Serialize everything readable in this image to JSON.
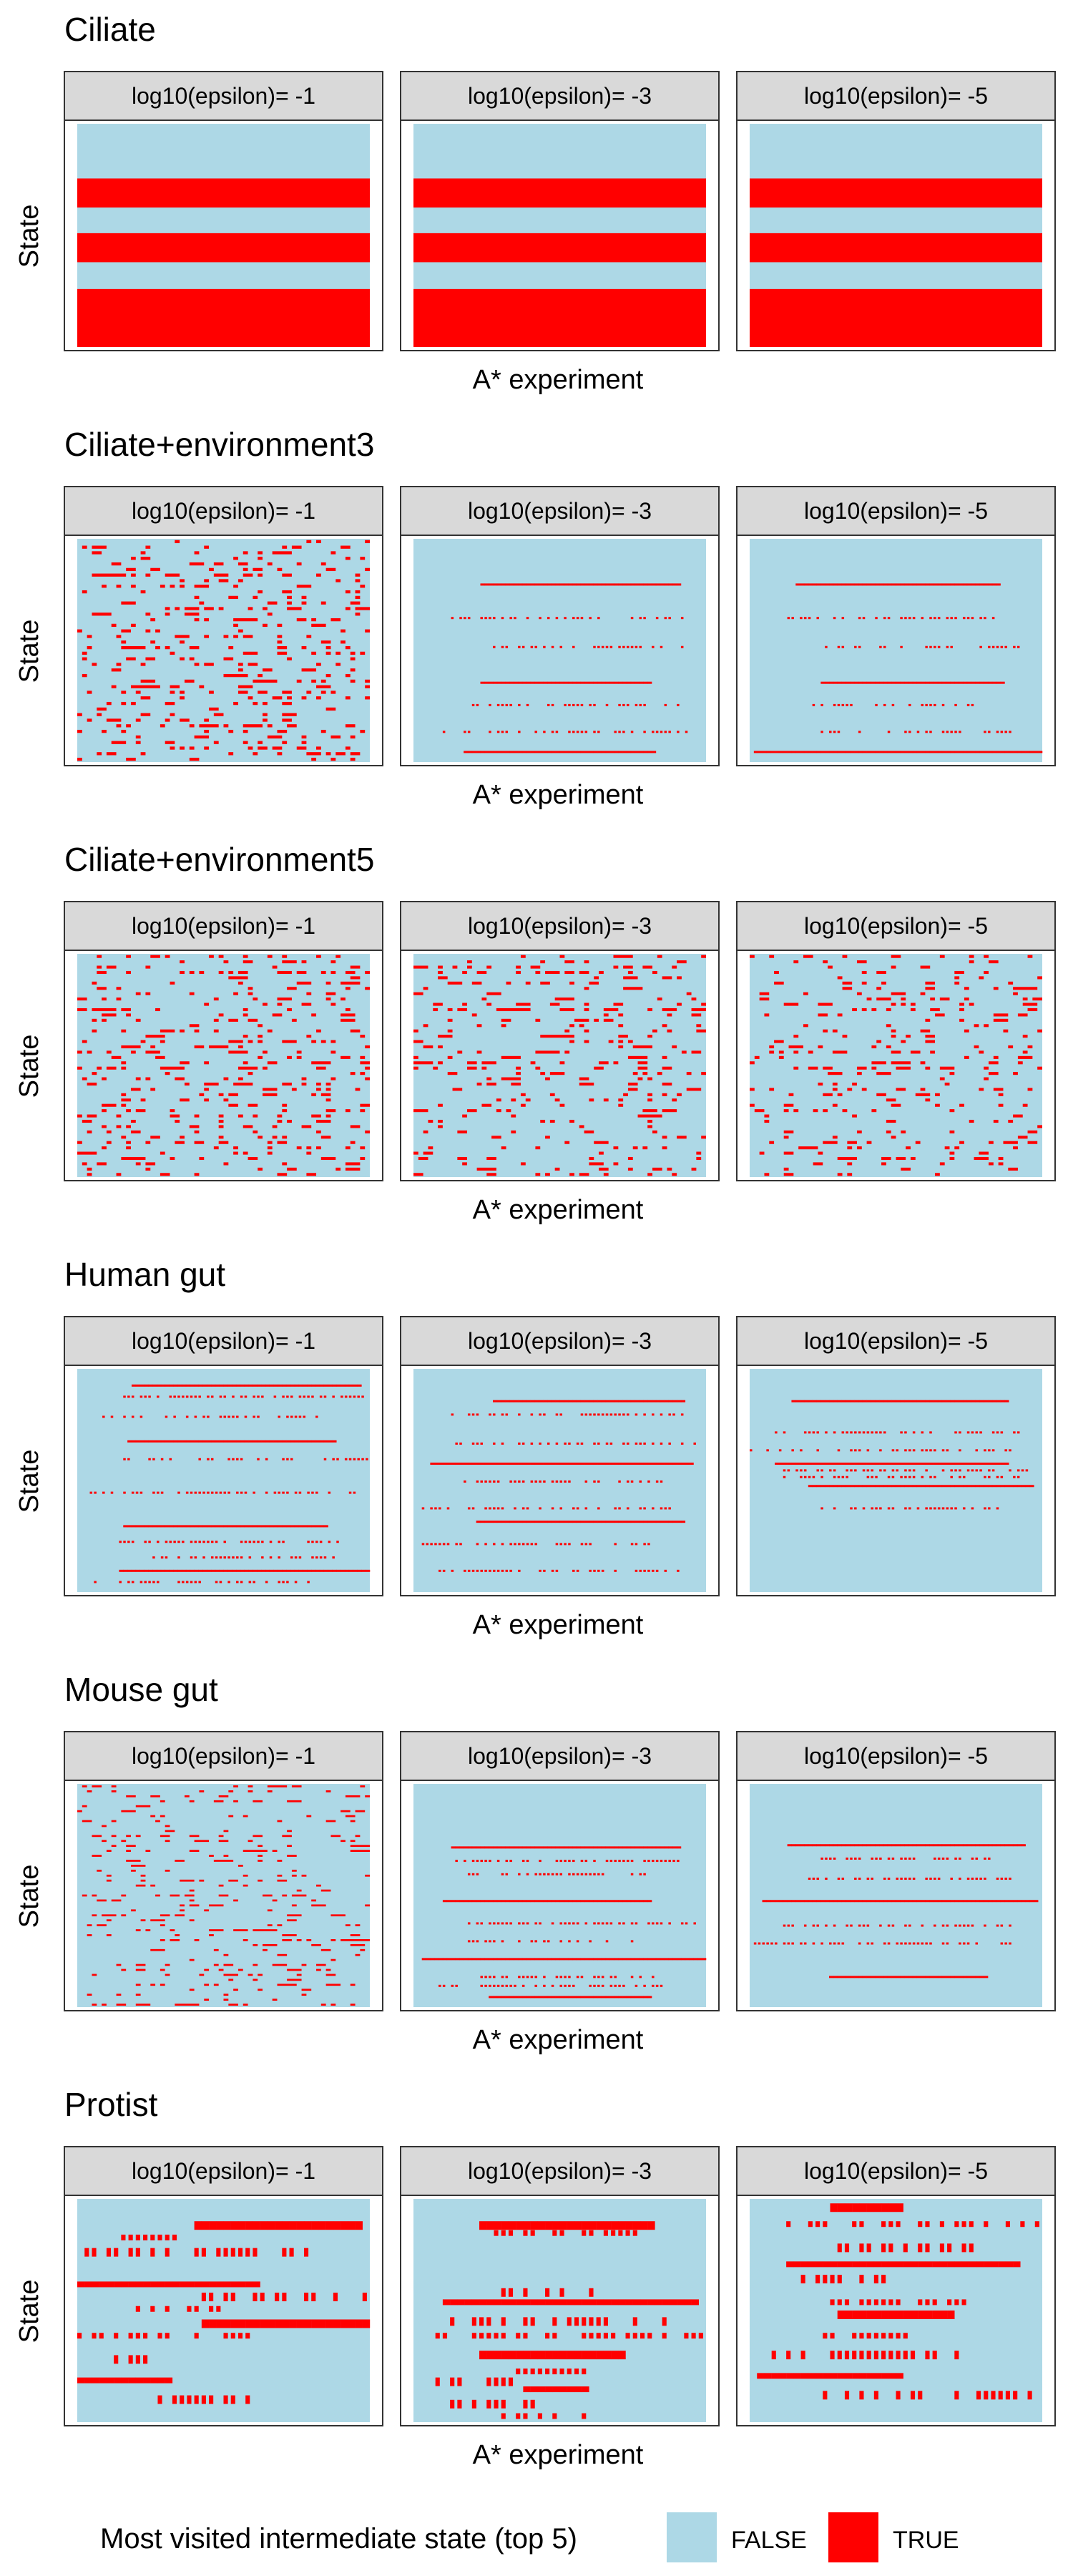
{
  "colors": {
    "false": "#add8e6",
    "true": "#ff0000",
    "strip_bg": "#d9d9d9",
    "border": "#333333"
  },
  "legend": {
    "title": "Most visited intermediate state (top 5)",
    "false_label": "FALSE",
    "true_label": "TRUE"
  },
  "chart_data": [
    {
      "type": "heatmap",
      "title": "Ciliate",
      "xlabel": "A* experiment",
      "ylabel": "State",
      "panels": [
        {
          "facet": "log10(epsilon)= -1",
          "true_rows": [
            [
              0.245,
              0.375
            ],
            [
              0.49,
              0.62
            ],
            [
              0.74,
              1.0
            ]
          ],
          "pattern": "solid"
        },
        {
          "facet": "log10(epsilon)= -3",
          "true_rows": [
            [
              0.245,
              0.375
            ],
            [
              0.49,
              0.62
            ],
            [
              0.74,
              1.0
            ]
          ],
          "pattern": "solid"
        },
        {
          "facet": "log10(epsilon)= -5",
          "true_rows": [
            [
              0.245,
              0.375
            ],
            [
              0.49,
              0.62
            ],
            [
              0.74,
              1.0
            ]
          ],
          "pattern": "solid"
        }
      ]
    },
    {
      "type": "heatmap",
      "title": "Ciliate+environment3",
      "xlabel": "A* experiment",
      "ylabel": "State",
      "panels": [
        {
          "facet": "log10(epsilon)= -1",
          "pattern": "dense-random",
          "density": 0.14,
          "rows": 40
        },
        {
          "facet": "log10(epsilon)= -3",
          "pattern": "sparse-lines",
          "lines": [
            0.2,
            0.35,
            0.48,
            0.64,
            0.74,
            0.86,
            0.95
          ]
        },
        {
          "facet": "log10(epsilon)= -5",
          "pattern": "sparse-lines",
          "lines": [
            0.2,
            0.35,
            0.48,
            0.64,
            0.74,
            0.86,
            0.95
          ]
        }
      ]
    },
    {
      "type": "heatmap",
      "title": "Ciliate+environment5",
      "xlabel": "A* experiment",
      "ylabel": "State",
      "panels": [
        {
          "facet": "log10(epsilon)= -1",
          "pattern": "dense-random",
          "density": 0.13,
          "rows": 42
        },
        {
          "facet": "log10(epsilon)= -3",
          "pattern": "dense-random",
          "density": 0.12,
          "rows": 42
        },
        {
          "facet": "log10(epsilon)= -5",
          "pattern": "dense-random",
          "density": 0.11,
          "rows": 42
        }
      ]
    },
    {
      "type": "heatmap",
      "title": "Human gut",
      "xlabel": "A* experiment",
      "ylabel": "State",
      "panels": [
        {
          "facet": "log10(epsilon)= -1",
          "pattern": "thin-lines",
          "lines": [
            0.07,
            0.12,
            0.21,
            0.32,
            0.4,
            0.55,
            0.7,
            0.77,
            0.84,
            0.9,
            0.95
          ]
        },
        {
          "facet": "log10(epsilon)= -3",
          "pattern": "thin-lines",
          "lines": [
            0.14,
            0.2,
            0.33,
            0.42,
            0.5,
            0.62,
            0.68,
            0.78,
            0.9
          ]
        },
        {
          "facet": "log10(epsilon)= -5",
          "pattern": "thin-lines",
          "lines": [
            0.14,
            0.28,
            0.36,
            0.42,
            0.45,
            0.48,
            0.52,
            0.62
          ]
        }
      ]
    },
    {
      "type": "heatmap",
      "title": "Mouse gut",
      "xlabel": "A* experiment",
      "ylabel": "State",
      "panels": [
        {
          "facet": "log10(epsilon)= -1",
          "pattern": "thin-sparse",
          "density": 0.1,
          "rows": 45
        },
        {
          "facet": "log10(epsilon)= -3",
          "pattern": "thin-lines",
          "lines": [
            0.28,
            0.34,
            0.4,
            0.52,
            0.62,
            0.7,
            0.78,
            0.86,
            0.9,
            0.95
          ]
        },
        {
          "facet": "log10(epsilon)= -5",
          "pattern": "thin-lines",
          "lines": [
            0.27,
            0.33,
            0.42,
            0.52,
            0.63,
            0.71,
            0.86
          ]
        }
      ]
    },
    {
      "type": "heatmap",
      "title": "Protist",
      "xlabel": "A* experiment",
      "ylabel": "State",
      "panels": [
        {
          "facet": "log10(epsilon)= -1",
          "pattern": "blocks",
          "rows": [
            0.1,
            0.16,
            0.22,
            0.37,
            0.42,
            0.48,
            0.54,
            0.6,
            0.7,
            0.8,
            0.88
          ]
        },
        {
          "facet": "log10(epsilon)= -3",
          "pattern": "blocks",
          "rows": [
            0.1,
            0.14,
            0.4,
            0.45,
            0.53,
            0.6,
            0.68,
            0.76,
            0.8,
            0.84,
            0.9,
            0.96
          ]
        },
        {
          "facet": "log10(epsilon)= -5",
          "pattern": "blocks",
          "rows": [
            0.02,
            0.1,
            0.2,
            0.28,
            0.34,
            0.45,
            0.5,
            0.6,
            0.68,
            0.78,
            0.86
          ]
        }
      ]
    }
  ]
}
